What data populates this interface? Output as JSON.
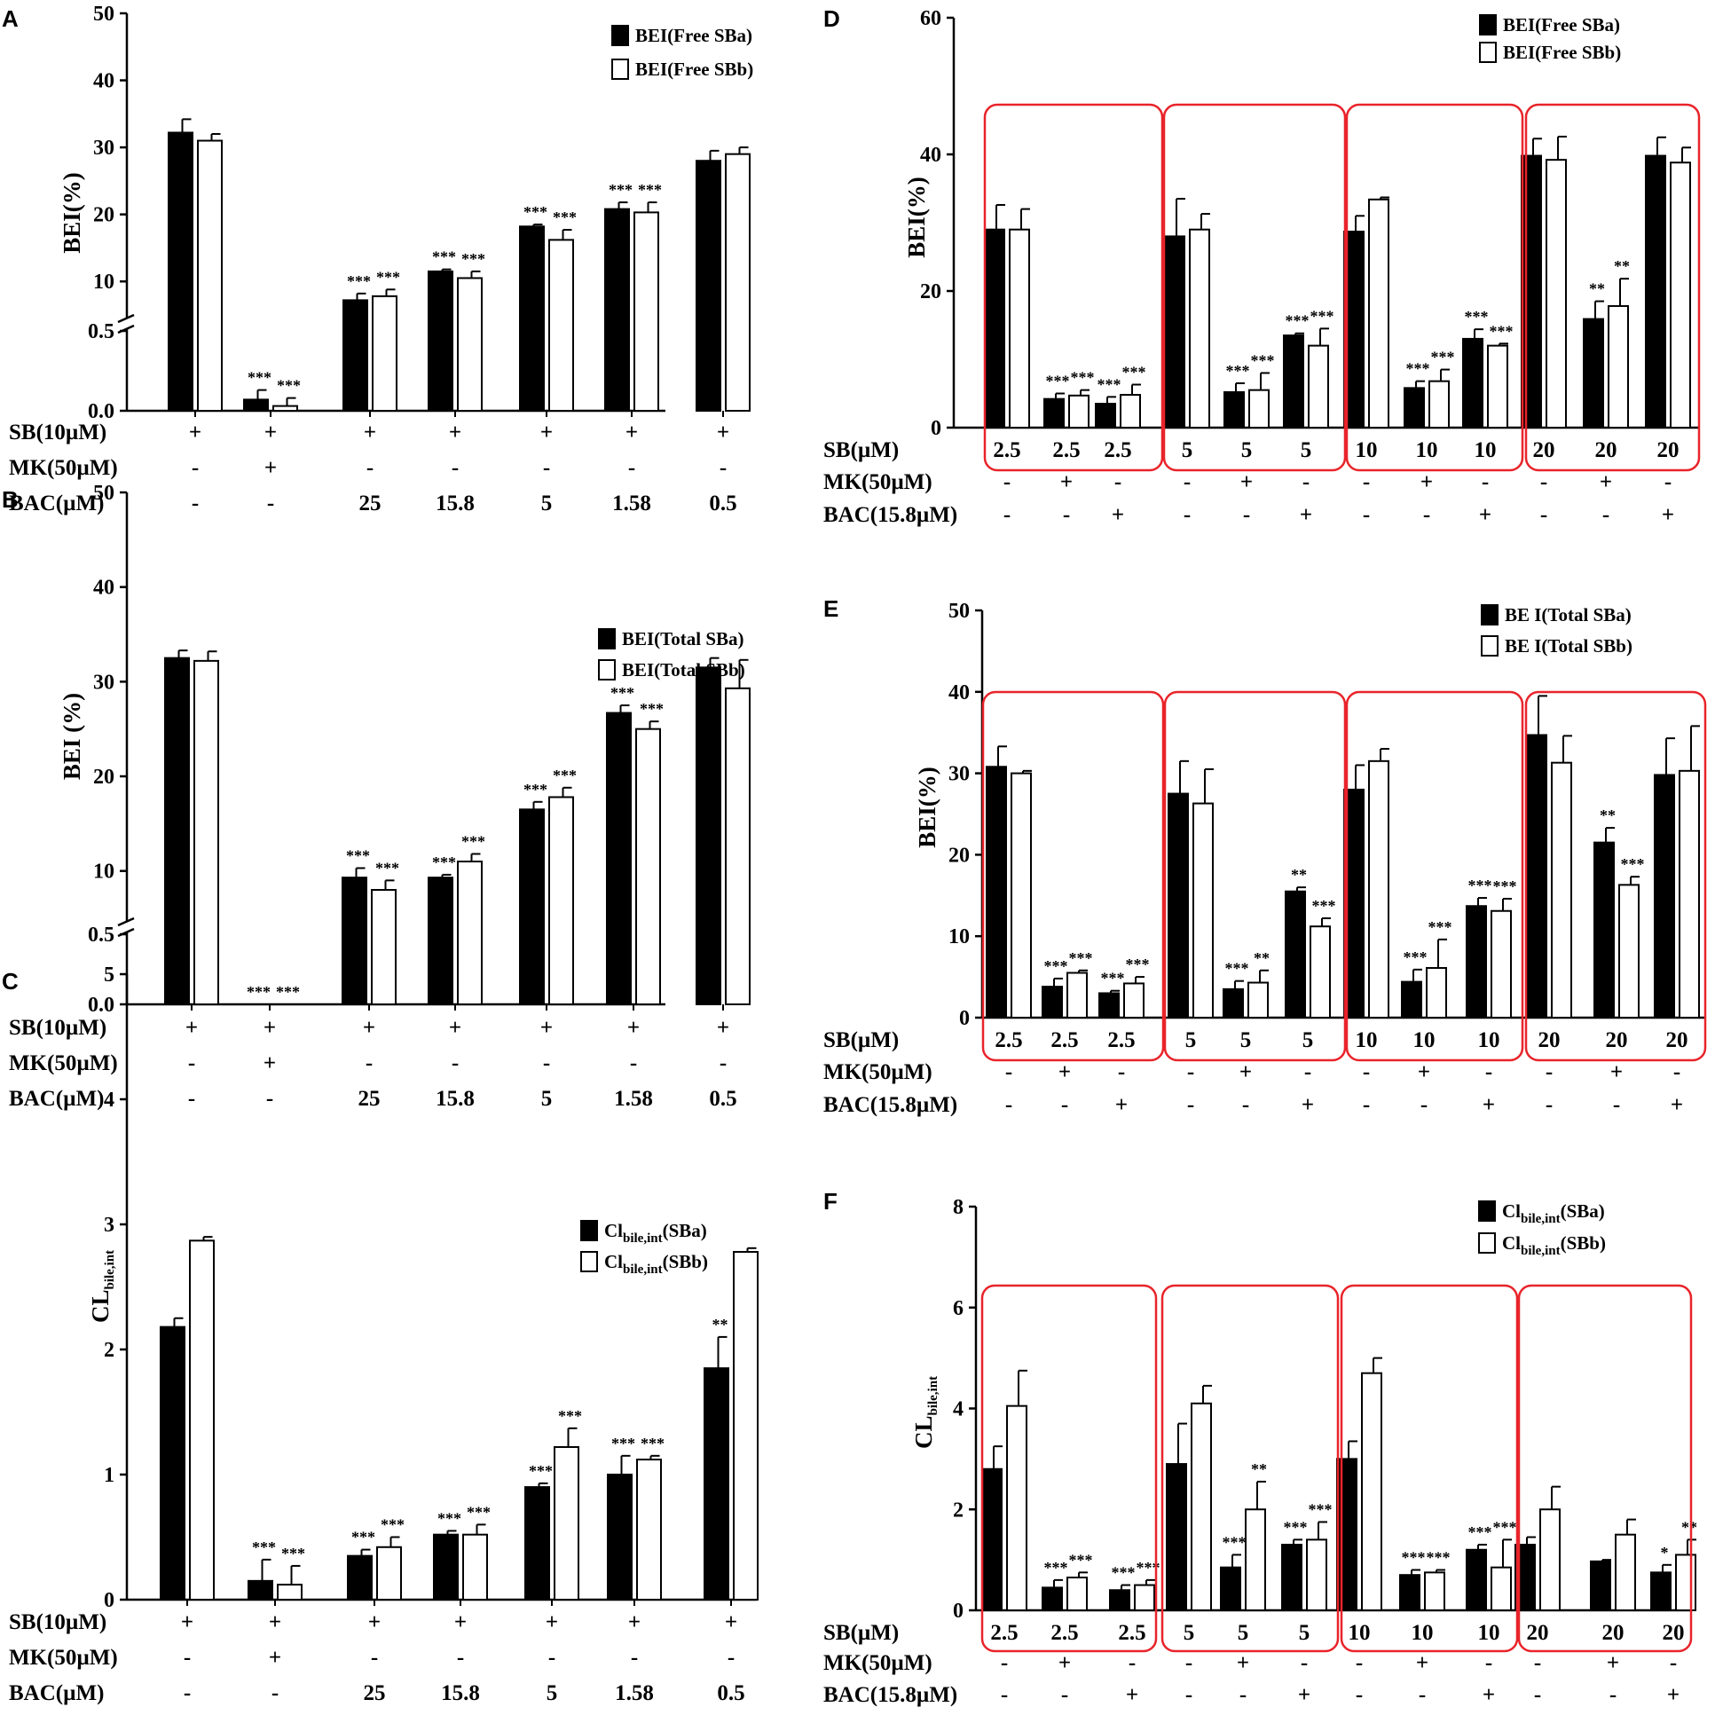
{
  "chart_data": [
    {
      "id": "A",
      "panel_label": "A",
      "type": "bar",
      "ylabel": "BEI(%)",
      "yaxis": {
        "kind": "broken",
        "lower_max": 0.5,
        "lower_ticks": [
          "0.0",
          "0.5"
        ],
        "upper_min": 5,
        "upper_max": 50,
        "upper_ticks": [
          "10",
          "20",
          "30",
          "40",
          "50"
        ]
      },
      "legend": [
        "BEI(Free SBa)",
        "BEI(Free SBb)"
      ],
      "series": [
        {
          "name": "BEI(Free SBa)",
          "values": [
            32.2,
            0.07,
            7.2,
            11.5,
            18.2,
            20.8,
            28.0
          ],
          "errors": [
            2.0,
            0.06,
            1.0,
            0.3,
            0.3,
            1.0,
            1.5
          ],
          "sig": [
            "",
            "***",
            "***",
            "***",
            "***",
            "***",
            ""
          ]
        },
        {
          "name": "BEI(Free SBb)",
          "values": [
            31.0,
            0.03,
            7.8,
            10.5,
            16.2,
            20.3,
            29.0
          ],
          "errors": [
            1.0,
            0.05,
            1.0,
            1.0,
            1.5,
            1.5,
            1.0
          ],
          "sig": [
            "",
            "***",
            "***",
            "***",
            "***",
            "***",
            ""
          ]
        }
      ],
      "conditions": [
        {
          "label": "SB(10µM)",
          "values": [
            "+",
            "+",
            "+",
            "+",
            "+",
            "+",
            "+"
          ]
        },
        {
          "label": "MK(50µM)",
          "values": [
            "-",
            "+",
            "-",
            "-",
            "-",
            "-",
            "-"
          ]
        },
        {
          "label": "BAC(µM)",
          "values": [
            "-",
            "-",
            "25",
            "15.8",
            "5",
            "1.58",
            "0.5"
          ]
        }
      ]
    },
    {
      "id": "B",
      "panel_label": "B",
      "type": "bar",
      "ylabel": "BEI (%)",
      "yaxis": {
        "kind": "broken",
        "lower_max": 0.5,
        "lower_ticks": [
          "0.0",
          "0.5"
        ],
        "upper_min": 5,
        "upper_max": 50,
        "upper_ticks": [
          "10",
          "20",
          "30",
          "40",
          "50"
        ]
      },
      "legend": [
        "BEI(Total SBa)",
        "BEI(Total SBb)"
      ],
      "series": [
        {
          "name": "BEI(Total SBa)",
          "values": [
            32.5,
            0,
            9.3,
            9.3,
            16.5,
            26.7,
            31.5
          ],
          "errors": [
            0.8,
            0,
            1.0,
            0.3,
            0.8,
            0.8,
            1.0
          ],
          "sig": [
            "",
            "***",
            "***",
            "***",
            "***",
            "***",
            ""
          ]
        },
        {
          "name": "BEI(Total SBb)",
          "values": [
            32.2,
            0,
            8.0,
            11.0,
            17.8,
            25.0,
            29.3
          ],
          "errors": [
            1.0,
            0,
            1.0,
            0.8,
            1.0,
            0.8,
            3.0
          ],
          "sig": [
            "",
            "***",
            "***",
            "***",
            "***",
            "***",
            ""
          ]
        }
      ],
      "conditions": [
        {
          "label": "SB(10µM)",
          "values": [
            "+",
            "+",
            "+",
            "+",
            "+",
            "+",
            "+"
          ]
        },
        {
          "label": "MK(50µM)",
          "values": [
            "-",
            "+",
            "-",
            "-",
            "-",
            "-",
            "-"
          ]
        },
        {
          "label": "BAC(µM)",
          "values": [
            "-",
            "-",
            "25",
            "15.8",
            "5",
            "1.58",
            "0.5"
          ]
        }
      ]
    },
    {
      "id": "C",
      "panel_label": "C",
      "type": "bar",
      "ylabel": "CL",
      "ylabel_sub": "bile,int",
      "yaxis": {
        "kind": "linear",
        "min": 0,
        "max": 5,
        "ticks": [
          "0",
          "1",
          "2",
          "3",
          "4",
          "5"
        ]
      },
      "legend": [
        {
          "main": "Cl",
          "sub": "bile,int",
          "suffix": "(SBa)"
        },
        {
          "main": "Cl",
          "sub": "bile,int",
          "suffix": "(SBb)"
        }
      ],
      "series": [
        {
          "name": "Clbile,int(SBa)",
          "values": [
            2.18,
            0.15,
            0.35,
            0.52,
            0.9,
            1.0,
            1.85
          ],
          "errors": [
            0.07,
            0.17,
            0.05,
            0.03,
            0.03,
            0.15,
            0.25
          ],
          "sig": [
            "",
            "***",
            "***",
            "***",
            "***",
            "***",
            "**"
          ]
        },
        {
          "name": "Clbile,int(SBb)",
          "values": [
            2.87,
            0.12,
            0.42,
            0.52,
            1.22,
            1.12,
            2.78
          ],
          "errors": [
            0.03,
            0.15,
            0.08,
            0.08,
            0.15,
            0.03,
            0.03
          ],
          "sig": [
            "",
            "***",
            "***",
            "***",
            "***",
            "***",
            ""
          ]
        }
      ],
      "conditions": [
        {
          "label": "SB(10µM)",
          "values": [
            "+",
            "+",
            "+",
            "+",
            "+",
            "+",
            "+"
          ]
        },
        {
          "label": "MK(50µM)",
          "values": [
            "-",
            "+",
            "-",
            "-",
            "-",
            "-",
            "-"
          ]
        },
        {
          "label": "BAC(µM)",
          "values": [
            "-",
            "-",
            "25",
            "15.8",
            "5",
            "1.58",
            "0.5"
          ]
        }
      ]
    },
    {
      "id": "D",
      "panel_label": "D",
      "type": "bar",
      "ylabel": "BEI(%)",
      "yaxis": {
        "kind": "linear",
        "min": 0,
        "max": 60,
        "ticks": [
          "0",
          "20",
          "40",
          "60"
        ]
      },
      "legend": [
        "BEI(Free SBa)",
        "BEI(Free SBb)"
      ],
      "series": [
        {
          "name": "BEI(Free SBa)",
          "values": [
            29,
            4.2,
            3.5,
            28,
            5.2,
            13.5,
            28.7,
            5.8,
            13,
            39.8,
            15.9,
            39.8
          ],
          "errors": [
            3.6,
            0.8,
            1.0,
            5.5,
            1.3,
            0.3,
            2.3,
            1.0,
            1.4,
            2.5,
            2.6,
            2.7
          ],
          "sig": [
            "",
            "***",
            "***",
            "",
            "***",
            "***",
            "",
            "***",
            "***",
            "",
            "**",
            ""
          ]
        },
        {
          "name": "BEI(Free SBb)",
          "values": [
            29,
            4.7,
            4.8,
            29,
            5.5,
            12,
            33.4,
            6.8,
            12,
            39.2,
            17.8,
            38.8
          ],
          "errors": [
            3,
            0.8,
            1.5,
            2.3,
            2.5,
            2.5,
            0.3,
            1.7,
            0.3,
            3.4,
            4.0,
            2.2
          ],
          "sig": [
            "",
            "***",
            "***",
            "",
            "***",
            "***",
            "",
            "***",
            "***",
            "",
            "**",
            ""
          ]
        }
      ],
      "conditions": [
        {
          "label": "SB(µM)",
          "values": [
            "2.5",
            "2.5",
            "2.5",
            "5",
            "5",
            "5",
            "10",
            "10",
            "10",
            "20",
            "20",
            "20"
          ]
        },
        {
          "label": "MK(50µM)",
          "values": [
            "-",
            "+",
            "-",
            "-",
            "+",
            "-",
            "-",
            "+",
            "-",
            "-",
            "+",
            "-"
          ]
        },
        {
          "label": "BAC(15.8µM)",
          "values": [
            "-",
            "-",
            "+",
            "-",
            "-",
            "+",
            "-",
            "-",
            "+",
            "-",
            "-",
            "+"
          ]
        }
      ]
    },
    {
      "id": "E",
      "panel_label": "E",
      "type": "bar",
      "ylabel": "BEI(%)",
      "yaxis": {
        "kind": "linear",
        "min": 0,
        "max": 50,
        "ticks": [
          "0",
          "10",
          "20",
          "30",
          "40",
          "50"
        ]
      },
      "legend": [
        "BE I(Total SBa)",
        "BE I(Total SBb)"
      ],
      "series": [
        {
          "name": "BE I(Total SBa)",
          "values": [
            30.8,
            3.8,
            3.0,
            27.5,
            3.5,
            15.5,
            28,
            4.4,
            13.7,
            34.7,
            21.5,
            29.8
          ],
          "errors": [
            2.5,
            1.0,
            0.3,
            4.0,
            1.0,
            0.5,
            3.0,
            1.5,
            1.0,
            4.8,
            1.8,
            4.5
          ],
          "sig": [
            "",
            "***",
            "***",
            "",
            "***",
            "**",
            "",
            "***",
            "***",
            "",
            "**",
            ""
          ]
        },
        {
          "name": "BE I(Total SBb)",
          "values": [
            30.0,
            5.5,
            4.2,
            26.3,
            4.3,
            11.2,
            31.5,
            6.1,
            13.1,
            31.3,
            16.3,
            30.3
          ],
          "errors": [
            0.3,
            0.3,
            0.8,
            4.2,
            1.5,
            1.0,
            1.5,
            3.5,
            1.5,
            3.3,
            1.0,
            5.5
          ],
          "sig": [
            "",
            "***",
            "***",
            "",
            "**",
            "***",
            "",
            "***",
            "***",
            "",
            "***",
            ""
          ]
        }
      ],
      "conditions": [
        {
          "label": "SB(µM)",
          "values": [
            "2.5",
            "2.5",
            "2.5",
            "5",
            "5",
            "5",
            "10",
            "10",
            "10",
            "20",
            "20",
            "20"
          ]
        },
        {
          "label": "MK(50µM)",
          "values": [
            "-",
            "+",
            "-",
            "-",
            "+",
            "-",
            "-",
            "+",
            "-",
            "-",
            "+",
            "-"
          ]
        },
        {
          "label": "BAC(15.8µM)",
          "values": [
            "-",
            "-",
            "+",
            "-",
            "-",
            "+",
            "-",
            "-",
            "+",
            "-",
            "-",
            "+"
          ]
        }
      ]
    },
    {
      "id": "F",
      "panel_label": "F",
      "type": "bar",
      "ylabel": "CL",
      "ylabel_sub": "bile,int",
      "yaxis": {
        "kind": "linear",
        "min": 0,
        "max": 8,
        "ticks": [
          "0",
          "2",
          "4",
          "6",
          "8"
        ]
      },
      "legend": [
        {
          "main": "Cl",
          "sub": "bile,int",
          "suffix": "(SBa)"
        },
        {
          "main": "Cl",
          "sub": "bile,int",
          "suffix": "(SBb)"
        }
      ],
      "series": [
        {
          "name": "Clbile,int(SBa)",
          "values": [
            2.8,
            0.45,
            0.4,
            2.9,
            0.85,
            1.3,
            3.0,
            0.7,
            1.2,
            1.3,
            0.97,
            0.75
          ],
          "errors": [
            0.45,
            0.15,
            0.1,
            0.8,
            0.25,
            0.1,
            0.35,
            0.1,
            0.1,
            0.15,
            0.03,
            0.15
          ],
          "sig": [
            "",
            "***",
            "***",
            "",
            "***",
            "***",
            "",
            "***",
            "***",
            "",
            "",
            "*"
          ]
        },
        {
          "name": "Clbile,int(SBb)",
          "values": [
            4.05,
            0.65,
            0.5,
            4.1,
            2.0,
            1.4,
            4.7,
            0.75,
            0.85,
            2.0,
            1.5,
            1.1
          ],
          "errors": [
            0.7,
            0.1,
            0.1,
            0.35,
            0.55,
            0.35,
            0.3,
            0.05,
            0.55,
            0.45,
            0.3,
            0.3
          ],
          "sig": [
            "",
            "***",
            "***",
            "",
            "**",
            "***",
            "",
            "***",
            "***",
            "",
            "",
            "**"
          ]
        }
      ],
      "conditions": [
        {
          "label": "SB(µM)",
          "values": [
            "2.5",
            "2.5",
            "2.5",
            "5",
            "5",
            "5",
            "10",
            "10",
            "10",
            "20",
            "20",
            "20"
          ]
        },
        {
          "label": "MK(50µM)",
          "values": [
            "-",
            "+",
            "-",
            "-",
            "+",
            "-",
            "-",
            "+",
            "-",
            "-",
            "+",
            "-"
          ]
        },
        {
          "label": "BAC(15.8µM)",
          "values": [
            "-",
            "-",
            "+",
            "-",
            "-",
            "+",
            "-",
            "-",
            "+",
            "-",
            "-",
            "+"
          ]
        }
      ]
    }
  ]
}
